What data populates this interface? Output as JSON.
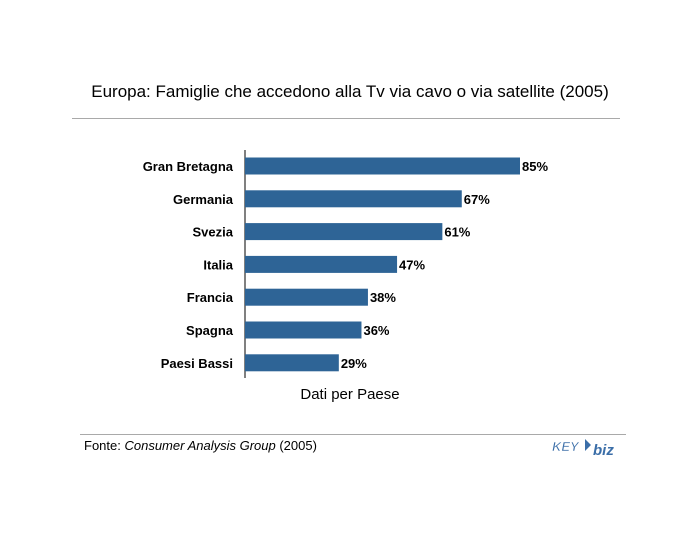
{
  "chart_data": {
    "type": "bar",
    "orientation": "horizontal",
    "title": "Europa: Famiglie che accedono alla Tv via cavo o via satellite  (2005)",
    "xlabel": "Dati per Paese",
    "ylabel": "",
    "categories": [
      "Gran Bretagna",
      "Germania",
      "Svezia",
      "Italia",
      "Francia",
      "Spagna",
      "Paesi Bassi"
    ],
    "values": [
      85,
      67,
      61,
      47,
      38,
      36,
      29
    ],
    "data_labels": [
      "85%",
      "67%",
      "61%",
      "47%",
      "38%",
      "36%",
      "29%"
    ],
    "xlim": [
      0,
      100
    ],
    "bar_color": "#2e6496",
    "grid": false,
    "legend": "none"
  },
  "source": {
    "prefix": "Fonte: ",
    "name": "Consumer Analysis Group",
    "suffix": " (2005)"
  },
  "logo": {
    "text_left": "KEY",
    "text_right": "biz",
    "color": "#3b6ea8"
  }
}
